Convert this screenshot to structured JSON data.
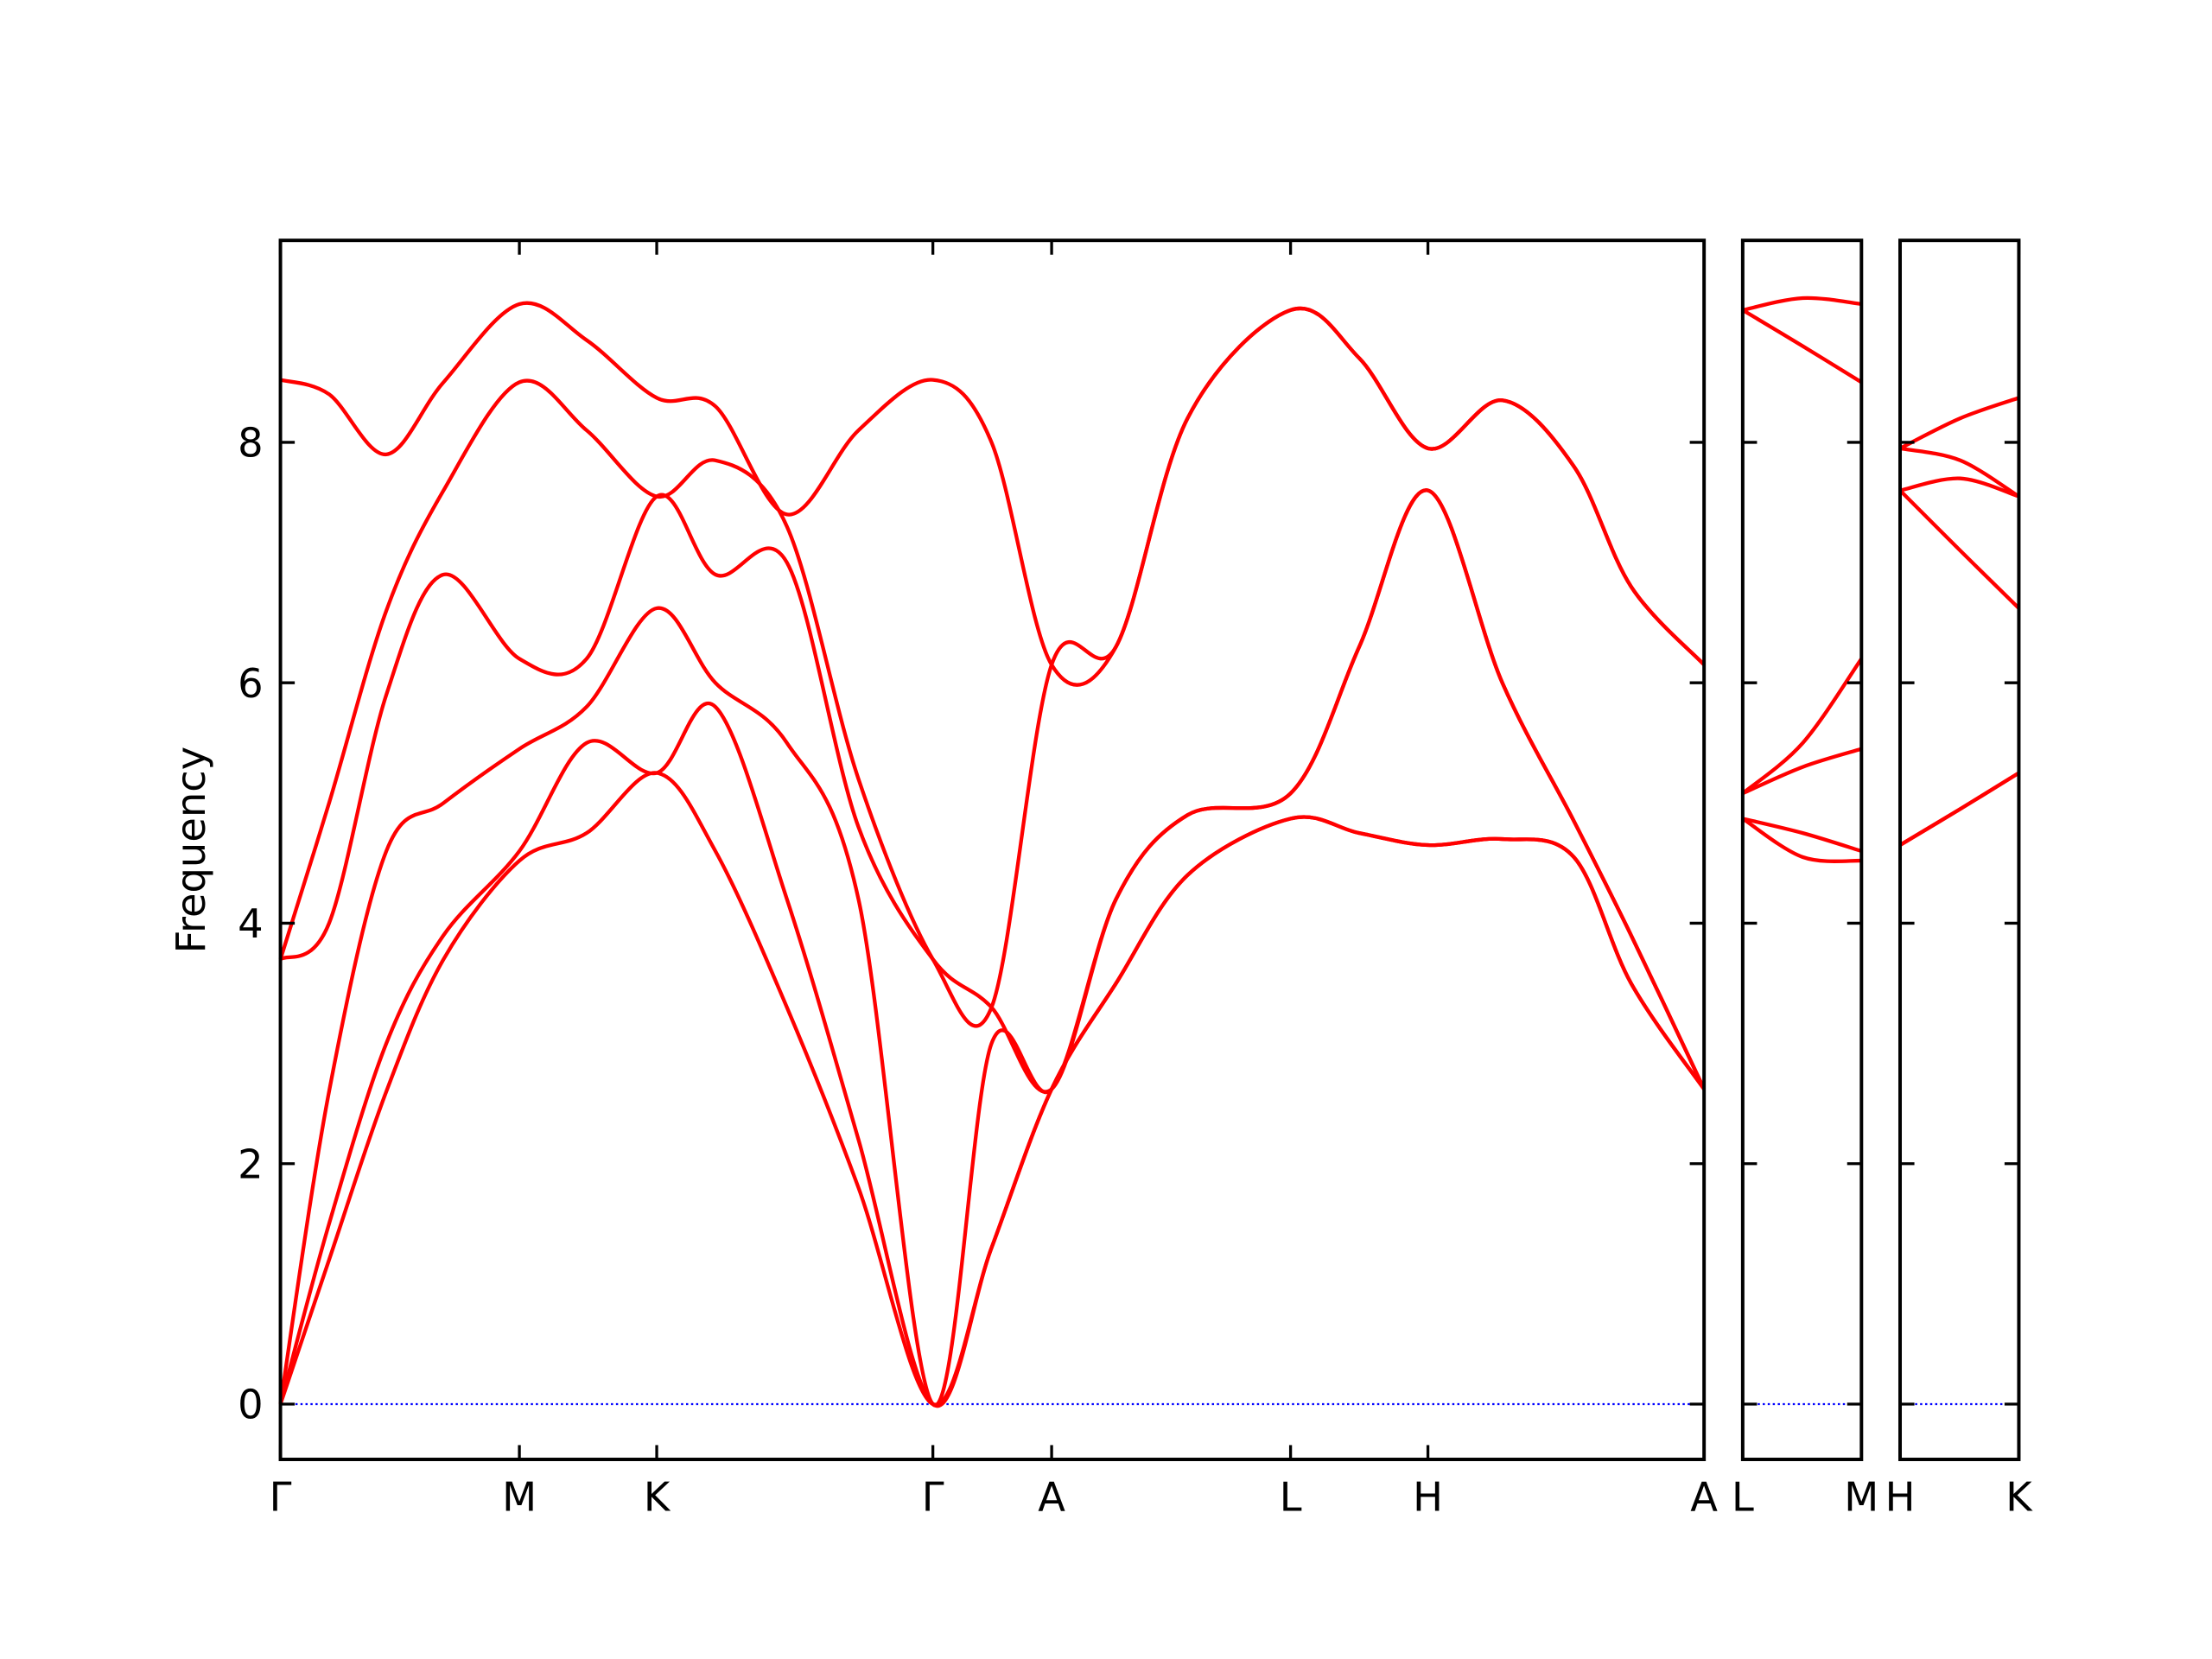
{
  "chart_data": [
    {
      "type": "line",
      "ylabel": "Frequency",
      "x": [
        0,
        0.34,
        0.74,
        1.14,
        1.67,
        2.14,
        2.63,
        3.04,
        3.54,
        4.04,
        4.56,
        4.97,
        5.39,
        5.84,
        6.34,
        7.06,
        7.54,
        8.02,
        8.54,
        9.04,
        9.44,
        9.95
      ],
      "series": [
        {
          "color": "#ff0000",
          "values": [
            0,
            1.2,
            2.6,
            3.7,
            4.52,
            4.75,
            5.25,
            4.6,
            3.3,
            1.8,
            0,
            1.3,
            2.62,
            3.5,
            4.4,
            4.87,
            4.75,
            4.65,
            4.7,
            4.55,
            3.5,
            2.62
          ]
        },
        {
          "color": "#ff0000",
          "values": [
            0,
            1.5,
            3.0,
            3.9,
            4.6,
            5.5,
            5.25,
            5.8,
            4.2,
            2.2,
            0,
            1.3,
            2.62,
            3.5,
            4.4,
            4.87,
            4.75,
            4.65,
            4.7,
            4.55,
            3.5,
            2.62
          ]
        },
        {
          "color": "#ff0000",
          "values": [
            0,
            2.6,
            4.6,
            5.0,
            5.45,
            5.8,
            6.62,
            6.0,
            5.5,
            4.2,
            0,
            3.0,
            2.62,
            4.2,
            4.9,
            5.08,
            6.3,
            7.6,
            6.0,
            4.85,
            3.9,
            2.62
          ]
        },
        {
          "color": "#ff0000",
          "values": [
            3.7,
            4.0,
            5.9,
            6.9,
            6.2,
            6.2,
            7.55,
            6.9,
            7.0,
            4.8,
            3.7,
            3.3,
            2.62,
            4.2,
            4.9,
            5.08,
            6.3,
            7.6,
            6.0,
            4.85,
            3.9,
            2.62
          ]
        },
        {
          "color": "#ff0000",
          "values": [
            3.7,
            5.0,
            6.6,
            7.6,
            8.5,
            8.1,
            7.55,
            7.85,
            7.3,
            5.2,
            3.7,
            3.3,
            6.15,
            6.3,
            8.2,
            9.1,
            8.7,
            7.95,
            8.35,
            7.8,
            6.8,
            6.15
          ]
        },
        {
          "color": "#ff0000",
          "values": [
            8.52,
            8.4,
            7.9,
            8.5,
            9.15,
            8.85,
            8.37,
            8.3,
            7.4,
            8.1,
            8.52,
            8.0,
            6.15,
            6.3,
            8.2,
            9.1,
            8.7,
            7.95,
            8.35,
            7.8,
            6.8,
            6.15
          ]
        }
      ],
      "xlim": [
        0,
        9.95
      ],
      "xticks": [
        {
          "value": 0,
          "label": "Γ"
        },
        {
          "value": 1.67,
          "label": "M"
        },
        {
          "value": 2.63,
          "label": "K"
        },
        {
          "value": 4.56,
          "label": "Γ"
        },
        {
          "value": 5.39,
          "label": "A"
        },
        {
          "value": 7.06,
          "label": "L"
        },
        {
          "value": 8.02,
          "label": "H"
        },
        {
          "value": 9.95,
          "label": "A"
        }
      ],
      "ylim": [
        -0.46,
        9.68
      ],
      "yticks": [
        0,
        2,
        4,
        6,
        8
      ],
      "ytick_labels": true,
      "zero_line": {
        "value": 0,
        "color": "#0000ff"
      }
    },
    {
      "type": "line",
      "x": [
        0,
        0.42,
        0.83
      ],
      "series": [
        {
          "color": "#ff0000",
          "values": [
            4.87,
            4.55,
            4.52
          ]
        },
        {
          "color": "#ff0000",
          "values": [
            4.87,
            4.75,
            4.6
          ]
        },
        {
          "color": "#ff0000",
          "values": [
            5.08,
            5.3,
            5.45
          ]
        },
        {
          "color": "#ff0000",
          "values": [
            5.08,
            5.5,
            6.2
          ]
        },
        {
          "color": "#ff0000",
          "values": [
            9.1,
            8.8,
            8.5
          ]
        },
        {
          "color": "#ff0000",
          "values": [
            9.1,
            9.2,
            9.15
          ]
        }
      ],
      "xlim": [
        0,
        0.83
      ],
      "xticks": [
        {
          "value": 0,
          "label": "L"
        },
        {
          "value": 0.83,
          "label": "M"
        }
      ],
      "ylim": [
        -0.46,
        9.68
      ],
      "yticks": [
        0,
        2,
        4,
        6,
        8
      ],
      "ytick_labels": false,
      "zero_line": {
        "value": 0,
        "color": "#0000ff"
      }
    },
    {
      "type": "line",
      "x": [
        0,
        0.42,
        0.83
      ],
      "series": [
        {
          "color": "#ff0000",
          "values": [
            4.65,
            4.95,
            5.25
          ]
        },
        {
          "color": "#ff0000",
          "values": [
            4.65,
            4.95,
            5.25
          ]
        },
        {
          "color": "#ff0000",
          "values": [
            7.6,
            7.1,
            6.62
          ]
        },
        {
          "color": "#ff0000",
          "values": [
            7.6,
            7.7,
            7.55
          ]
        },
        {
          "color": "#ff0000",
          "values": [
            7.95,
            7.85,
            7.55
          ]
        },
        {
          "color": "#ff0000",
          "values": [
            7.95,
            8.2,
            8.37
          ]
        }
      ],
      "xlim": [
        0,
        0.83
      ],
      "xticks": [
        {
          "value": 0,
          "label": "H"
        },
        {
          "value": 0.83,
          "label": "K"
        }
      ],
      "ylim": [
        -0.46,
        9.68
      ],
      "yticks": [
        0,
        2,
        4,
        6,
        8
      ],
      "ytick_labels": false,
      "zero_line": {
        "value": 0,
        "color": "#0000ff"
      }
    }
  ]
}
